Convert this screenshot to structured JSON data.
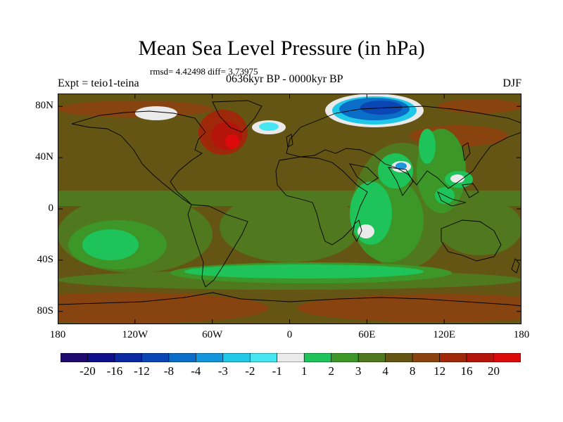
{
  "title": "Mean Sea Level Pressure (in hPa)",
  "stats": "rmsd= 4.42498 diff= 3.73975",
  "experiment": "Expt = teio1-teina",
  "period": "0636kyr BP - 0000kyr BP",
  "season": "DJF",
  "y_axis": {
    "ticks": [
      {
        "label": "80N",
        "lat": 80
      },
      {
        "label": "40N",
        "lat": 40
      },
      {
        "label": "0",
        "lat": 0
      },
      {
        "label": "40S",
        "lat": -40
      },
      {
        "label": "80S",
        "lat": -80
      }
    ]
  },
  "x_axis": {
    "ticks": [
      {
        "label": "180",
        "lon": -180
      },
      {
        "label": "120W",
        "lon": -120
      },
      {
        "label": "60W",
        "lon": -60
      },
      {
        "label": "0",
        "lon": 0
      },
      {
        "label": "60E",
        "lon": 60
      },
      {
        "label": "120E",
        "lon": 120
      },
      {
        "label": "180",
        "lon": 180
      }
    ]
  },
  "colorbar": {
    "colors": [
      "#1e0a6e",
      "#0f0f8c",
      "#0a28a0",
      "#0a46b4",
      "#0a6ec8",
      "#1496dc",
      "#1ec8e6",
      "#46e6f0",
      "#eaeaea",
      "#1ec35a",
      "#3c9628",
      "#50781e",
      "#645514",
      "#8c420f",
      "#a0280a",
      "#b4140a",
      "#dc0a0a"
    ],
    "labels": [
      "-20",
      "-16",
      "-12",
      "-8",
      "-4",
      "-3",
      "-2",
      "-1",
      "1",
      "2",
      "3",
      "4",
      "8",
      "12",
      "16",
      "20"
    ]
  },
  "colors": {
    "background_field": "#645514",
    "land_outline": "#000000"
  }
}
